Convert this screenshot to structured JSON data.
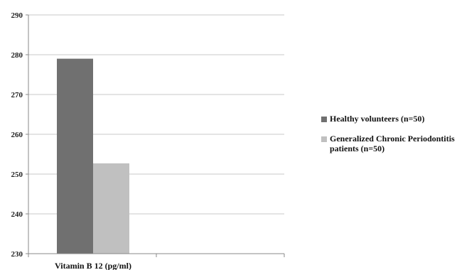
{
  "chart_data": {
    "type": "bar",
    "title": "",
    "xlabel": "",
    "ylabel": "",
    "categories": [
      "Vitamin B 12 (pg/ml)"
    ],
    "series": [
      {
        "name": "Healthy volunteers (n=50)",
        "values": [
          279
        ],
        "color": "#707070"
      },
      {
        "name": "Generalized Chronic Periodontitis patients (n=50)",
        "values": [
          252.7
        ],
        "color": "#c0c0c0"
      }
    ],
    "ylim": [
      230,
      290
    ],
    "yticks": [
      230,
      240,
      250,
      260,
      270,
      280,
      290
    ],
    "grid": true,
    "legend_position": "right"
  }
}
